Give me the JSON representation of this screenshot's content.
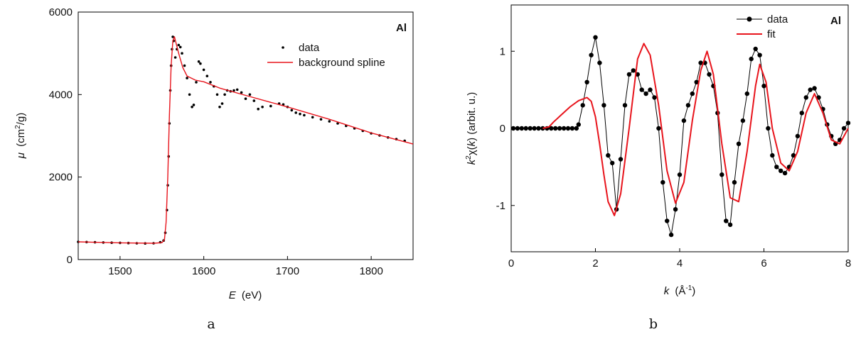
{
  "chart_data": [
    {
      "type": "scatter",
      "panel": "a",
      "annotation": "Al",
      "xlabel": "E",
      "xunit": "(eV)",
      "ylabel": "μ",
      "yunit_pre": "(cm",
      "yunit_sup": "2",
      "yunit_post": "/g)",
      "xlim": [
        1450,
        1850
      ],
      "ylim": [
        0,
        6000
      ],
      "xticks": [
        1500,
        1600,
        1700,
        1800
      ],
      "yticks": [
        0,
        2000,
        4000,
        6000
      ],
      "legend_position": "top-right",
      "series": [
        {
          "name": "data",
          "style": "dots",
          "color": "#000000",
          "x": [
            1450,
            1460,
            1470,
            1480,
            1490,
            1500,
            1510,
            1520,
            1530,
            1540,
            1548,
            1552,
            1554,
            1556,
            1557,
            1558,
            1559,
            1560,
            1561,
            1562,
            1563,
            1564,
            1566,
            1568,
            1570,
            1572,
            1574,
            1577,
            1580,
            1583,
            1586,
            1588,
            1591,
            1594,
            1596,
            1600,
            1604,
            1608,
            1612,
            1616,
            1619,
            1622,
            1625,
            1628,
            1632,
            1636,
            1640,
            1645,
            1650,
            1655,
            1660,
            1665,
            1670,
            1680,
            1690,
            1695,
            1700,
            1705,
            1710,
            1715,
            1720,
            1730,
            1740,
            1750,
            1760,
            1770,
            1780,
            1790,
            1800,
            1810,
            1820,
            1830,
            1840
          ],
          "y": [
            430,
            425,
            420,
            415,
            410,
            405,
            400,
            395,
            392,
            395,
            420,
            460,
            650,
            1200,
            1800,
            2500,
            3300,
            4100,
            4700,
            5100,
            5400,
            5300,
            4900,
            5100,
            5200,
            5150,
            5000,
            4700,
            4400,
            4000,
            3700,
            3750,
            4300,
            4800,
            4750,
            4600,
            4450,
            4300,
            4200,
            4000,
            3700,
            3780,
            4000,
            4100,
            4080,
            4100,
            4120,
            4050,
            3900,
            4000,
            3850,
            3650,
            3700,
            3720,
            3780,
            3760,
            3700,
            3620,
            3560,
            3530,
            3500,
            3450,
            3400,
            3350,
            3300,
            3240,
            3180,
            3120,
            3060,
            3010,
            2960,
            2920,
            2880
          ]
        },
        {
          "name": "background spline",
          "style": "line",
          "color": "#e8141c",
          "x": [
            1450,
            1500,
            1540,
            1550,
            1553,
            1555,
            1557,
            1559,
            1561,
            1563,
            1565,
            1570,
            1575,
            1580,
            1590,
            1600,
            1620,
            1650,
            1700,
            1750,
            1800,
            1850
          ],
          "y": [
            430,
            405,
            395,
            410,
            480,
            900,
            2000,
            3500,
            4700,
            5300,
            5400,
            5000,
            4650,
            4450,
            4350,
            4310,
            4150,
            3980,
            3700,
            3400,
            3070,
            2800
          ]
        }
      ]
    },
    {
      "type": "line",
      "panel": "b",
      "annotation": "Al",
      "xlabel": "k",
      "xunit_pre": "(Å",
      "xunit_sup": "-1",
      "xunit_post": ")",
      "ylabel_k": "k",
      "ylabel_sup": "2",
      "ylabel_chi": "χ",
      "ylabel_paren_open": "(",
      "ylabel_kvar": "k",
      "ylabel_post": ") (arbit. u.)",
      "xlim": [
        0,
        8
      ],
      "ylim": [
        -1.6,
        1.6
      ],
      "xticks": [
        0,
        2,
        4,
        6,
        8
      ],
      "yticks": [
        -1,
        0,
        1
      ],
      "legend_position": "top-right",
      "series": [
        {
          "name": "data",
          "style": "line-dots",
          "color": "#000000",
          "x": [
            0.05,
            0.15,
            0.25,
            0.35,
            0.45,
            0.55,
            0.65,
            0.75,
            0.85,
            0.95,
            1.05,
            1.15,
            1.25,
            1.35,
            1.45,
            1.55,
            1.6,
            1.7,
            1.8,
            1.9,
            2.0,
            2.1,
            2.2,
            2.3,
            2.4,
            2.5,
            2.6,
            2.7,
            2.8,
            2.9,
            3.0,
            3.1,
            3.2,
            3.3,
            3.4,
            3.5,
            3.6,
            3.7,
            3.8,
            3.9,
            4.0,
            4.1,
            4.2,
            4.3,
            4.4,
            4.5,
            4.6,
            4.7,
            4.8,
            4.9,
            5.0,
            5.1,
            5.2,
            5.3,
            5.4,
            5.5,
            5.6,
            5.7,
            5.8,
            5.9,
            6.0,
            6.1,
            6.2,
            6.3,
            6.4,
            6.5,
            6.6,
            6.7,
            6.8,
            6.9,
            7.0,
            7.1,
            7.2,
            7.3,
            7.4,
            7.5,
            7.6,
            7.7,
            7.8,
            7.9,
            8.0
          ],
          "y": [
            0,
            0,
            0,
            0,
            0,
            0,
            0,
            0,
            0,
            0,
            0,
            0,
            0,
            0,
            0,
            0,
            0.05,
            0.3,
            0.6,
            0.95,
            1.18,
            0.85,
            0.3,
            -0.35,
            -0.45,
            -1.05,
            -0.4,
            0.3,
            0.7,
            0.75,
            0.7,
            0.5,
            0.45,
            0.5,
            0.4,
            0.0,
            -0.7,
            -1.2,
            -1.38,
            -1.05,
            -0.6,
            0.1,
            0.3,
            0.45,
            0.6,
            0.85,
            0.85,
            0.7,
            0.55,
            0.2,
            -0.6,
            -1.2,
            -1.25,
            -0.7,
            -0.2,
            0.1,
            0.45,
            0.9,
            1.03,
            0.95,
            0.55,
            0.0,
            -0.35,
            -0.5,
            -0.55,
            -0.58,
            -0.5,
            -0.35,
            -0.1,
            0.2,
            0.4,
            0.5,
            0.52,
            0.4,
            0.25,
            0.05,
            -0.1,
            -0.2,
            -0.15,
            0.0,
            0.07
          ]
        },
        {
          "name": "fit",
          "style": "line",
          "color": "#e8141c",
          "x": [
            0.75,
            0.9,
            1.0,
            1.2,
            1.4,
            1.6,
            1.8,
            1.9,
            2.0,
            2.1,
            2.2,
            2.3,
            2.45,
            2.6,
            2.8,
            3.0,
            3.15,
            3.3,
            3.5,
            3.7,
            3.9,
            4.1,
            4.3,
            4.5,
            4.65,
            4.8,
            5.0,
            5.2,
            5.4,
            5.6,
            5.8,
            5.9,
            6.05,
            6.2,
            6.4,
            6.6,
            6.8,
            7.0,
            7.2,
            7.4,
            7.6,
            7.8,
            8.0
          ],
          "y": [
            0,
            0.02,
            0.08,
            0.18,
            0.28,
            0.36,
            0.4,
            0.35,
            0.15,
            -0.2,
            -0.6,
            -0.95,
            -1.13,
            -0.85,
            0.0,
            0.9,
            1.1,
            0.95,
            0.3,
            -0.55,
            -0.97,
            -0.7,
            0.1,
            0.75,
            1.0,
            0.7,
            -0.2,
            -0.9,
            -0.95,
            -0.3,
            0.55,
            0.83,
            0.6,
            0.0,
            -0.45,
            -0.55,
            -0.3,
            0.2,
            0.45,
            0.2,
            -0.15,
            -0.2,
            0.0
          ]
        }
      ]
    }
  ],
  "panel_labels": [
    "a",
    "b"
  ]
}
